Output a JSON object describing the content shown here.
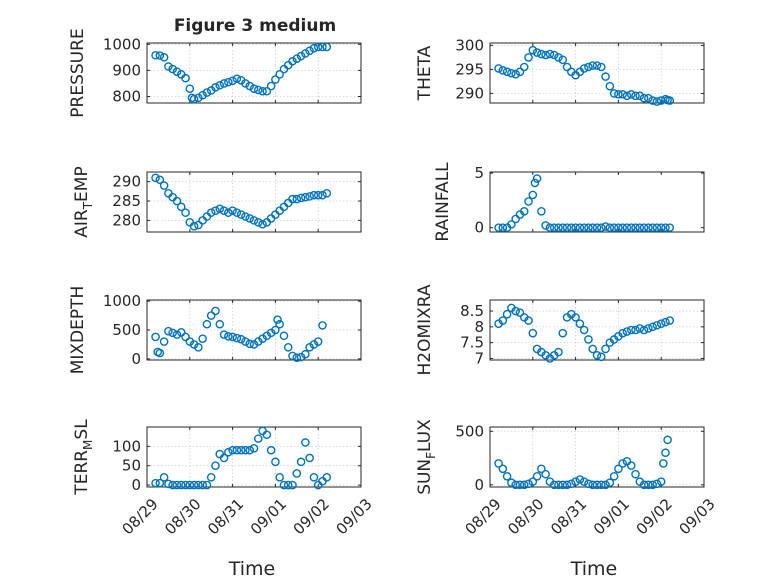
{
  "title": "Figure 3 medium",
  "xlabel": "Time",
  "x_ticks": [
    "08/29",
    "08/30",
    "08/31",
    "09/01",
    "09/02",
    "09/03"
  ],
  "marker_color": "#0072BD",
  "chart_data": [
    {
      "type": "scatter",
      "id": "pressure",
      "ylabel": "PRESSURE",
      "ylim": [
        775,
        1005
      ],
      "yticks": [
        800,
        900,
        1000
      ],
      "grid": true,
      "points": [
        [
          0.2,
          958
        ],
        [
          0.3,
          957
        ],
        [
          0.4,
          950
        ],
        [
          0.5,
          915
        ],
        [
          0.6,
          905
        ],
        [
          0.7,
          895
        ],
        [
          0.8,
          885
        ],
        [
          0.9,
          870
        ],
        [
          1.0,
          830
        ],
        [
          1.05,
          795
        ],
        [
          1.1,
          790
        ],
        [
          1.2,
          795
        ],
        [
          1.3,
          805
        ],
        [
          1.4,
          815
        ],
        [
          1.5,
          823
        ],
        [
          1.6,
          835
        ],
        [
          1.7,
          843
        ],
        [
          1.8,
          850
        ],
        [
          1.9,
          855
        ],
        [
          2.0,
          860
        ],
        [
          2.1,
          868
        ],
        [
          2.2,
          862
        ],
        [
          2.3,
          850
        ],
        [
          2.4,
          840
        ],
        [
          2.5,
          830
        ],
        [
          2.6,
          825
        ],
        [
          2.7,
          820
        ],
        [
          2.8,
          820
        ],
        [
          2.9,
          840
        ],
        [
          3.0,
          865
        ],
        [
          3.1,
          885
        ],
        [
          3.2,
          905
        ],
        [
          3.3,
          920
        ],
        [
          3.4,
          935
        ],
        [
          3.5,
          945
        ],
        [
          3.6,
          955
        ],
        [
          3.7,
          965
        ],
        [
          3.8,
          975
        ],
        [
          3.9,
          985
        ],
        [
          4.0,
          990
        ],
        [
          4.1,
          990
        ],
        [
          4.2,
          990
        ]
      ]
    },
    {
      "type": "scatter",
      "id": "theta",
      "ylabel": "THETA",
      "ylim": [
        288,
        300.5
      ],
      "yticks": [
        290,
        295,
        300
      ],
      "grid": true,
      "points": [
        [
          0.2,
          295.2
        ],
        [
          0.3,
          294.8
        ],
        [
          0.4,
          294.5
        ],
        [
          0.5,
          294.2
        ],
        [
          0.6,
          294.0
        ],
        [
          0.7,
          294.5
        ],
        [
          0.8,
          295.5
        ],
        [
          0.9,
          297.5
        ],
        [
          1.0,
          299.0
        ],
        [
          1.1,
          298.5
        ],
        [
          1.2,
          298.2
        ],
        [
          1.3,
          298.0
        ],
        [
          1.4,
          298.2
        ],
        [
          1.5,
          298.0
        ],
        [
          1.6,
          297.5
        ],
        [
          1.7,
          297.0
        ],
        [
          1.8,
          295.5
        ],
        [
          1.9,
          294.5
        ],
        [
          2.0,
          293.8
        ],
        [
          2.1,
          294.5
        ],
        [
          2.2,
          295.2
        ],
        [
          2.3,
          295.5
        ],
        [
          2.4,
          295.8
        ],
        [
          2.5,
          295.8
        ],
        [
          2.6,
          295.5
        ],
        [
          2.7,
          293.5
        ],
        [
          2.8,
          291.5
        ],
        [
          2.9,
          290.0
        ],
        [
          3.0,
          289.8
        ],
        [
          3.1,
          289.8
        ],
        [
          3.2,
          289.5
        ],
        [
          3.3,
          289.8
        ],
        [
          3.4,
          289.5
        ],
        [
          3.5,
          289.5
        ],
        [
          3.6,
          289.0
        ],
        [
          3.7,
          289.0
        ],
        [
          3.8,
          288.5
        ],
        [
          3.9,
          288.3
        ],
        [
          4.0,
          288.5
        ],
        [
          4.1,
          288.8
        ],
        [
          4.15,
          288.6
        ],
        [
          4.2,
          288.5
        ]
      ]
    },
    {
      "type": "scatter",
      "id": "air_temp",
      "ylabel": "AIR_TEMP",
      "ylabel_main": "AIR",
      "ylabel_sub": "T",
      "ylabel_rest": "EMP",
      "ylim": [
        277,
        292.5
      ],
      "yticks": [
        280,
        285,
        290
      ],
      "grid": true,
      "points": [
        [
          0.2,
          291
        ],
        [
          0.3,
          290.5
        ],
        [
          0.4,
          289
        ],
        [
          0.5,
          287
        ],
        [
          0.6,
          286
        ],
        [
          0.7,
          285
        ],
        [
          0.8,
          283.5
        ],
        [
          0.9,
          282
        ],
        [
          1.0,
          279.5
        ],
        [
          1.1,
          278.5
        ],
        [
          1.2,
          278.8
        ],
        [
          1.3,
          280
        ],
        [
          1.4,
          281
        ],
        [
          1.5,
          282
        ],
        [
          1.6,
          282.5
        ],
        [
          1.7,
          283
        ],
        [
          1.8,
          282.5
        ],
        [
          1.9,
          282
        ],
        [
          2.0,
          282.5
        ],
        [
          2.1,
          282
        ],
        [
          2.2,
          281.5
        ],
        [
          2.3,
          281
        ],
        [
          2.4,
          280.5
        ],
        [
          2.5,
          280
        ],
        [
          2.6,
          279.5
        ],
        [
          2.7,
          279
        ],
        [
          2.8,
          279.5
        ],
        [
          2.9,
          280.5
        ],
        [
          3.0,
          281.5
        ],
        [
          3.1,
          282.5
        ],
        [
          3.2,
          283.5
        ],
        [
          3.3,
          284.5
        ],
        [
          3.4,
          285.5
        ],
        [
          3.5,
          285.5
        ],
        [
          3.6,
          285.8
        ],
        [
          3.7,
          286
        ],
        [
          3.8,
          286.2
        ],
        [
          3.9,
          286.5
        ],
        [
          4.0,
          286.5
        ],
        [
          4.1,
          286.5
        ],
        [
          4.2,
          287
        ]
      ]
    },
    {
      "type": "scatter",
      "id": "rainfall",
      "ylabel": "RAINFALL",
      "ylim": [
        -0.4,
        5.1
      ],
      "yticks": [
        0,
        5
      ],
      "grid": false,
      "points": [
        [
          0.2,
          0
        ],
        [
          0.3,
          0
        ],
        [
          0.4,
          0
        ],
        [
          0.5,
          0.3
        ],
        [
          0.6,
          0.8
        ],
        [
          0.7,
          1.2
        ],
        [
          0.8,
          1.5
        ],
        [
          0.9,
          2.4
        ],
        [
          1.0,
          3.0
        ],
        [
          1.05,
          4.1
        ],
        [
          1.1,
          4.5
        ],
        [
          1.2,
          1.5
        ],
        [
          1.3,
          0.2
        ],
        [
          1.4,
          0
        ],
        [
          1.5,
          0
        ],
        [
          1.6,
          0
        ],
        [
          1.7,
          0
        ],
        [
          1.8,
          0
        ],
        [
          1.9,
          0
        ],
        [
          2.0,
          0
        ],
        [
          2.1,
          0
        ],
        [
          2.2,
          0
        ],
        [
          2.3,
          0
        ],
        [
          2.4,
          0
        ],
        [
          2.5,
          0
        ],
        [
          2.6,
          0
        ],
        [
          2.7,
          0.1
        ],
        [
          2.8,
          0
        ],
        [
          2.9,
          0
        ],
        [
          3.0,
          0
        ],
        [
          3.1,
          0
        ],
        [
          3.2,
          0
        ],
        [
          3.3,
          0
        ],
        [
          3.4,
          0
        ],
        [
          3.5,
          0
        ],
        [
          3.6,
          0
        ],
        [
          3.7,
          0
        ],
        [
          3.8,
          0
        ],
        [
          3.9,
          0
        ],
        [
          4.0,
          0
        ],
        [
          4.1,
          0
        ],
        [
          4.2,
          0
        ]
      ]
    },
    {
      "type": "scatter",
      "id": "mixdepth",
      "ylabel": "MIXDEPTH",
      "ylim": [
        -20,
        1020
      ],
      "yticks": [
        0,
        500,
        1000
      ],
      "grid": true,
      "points": [
        [
          0.2,
          380
        ],
        [
          0.25,
          120
        ],
        [
          0.3,
          100
        ],
        [
          0.4,
          300
        ],
        [
          0.5,
          480
        ],
        [
          0.6,
          450
        ],
        [
          0.7,
          420
        ],
        [
          0.8,
          460
        ],
        [
          0.9,
          380
        ],
        [
          1.0,
          300
        ],
        [
          1.1,
          250
        ],
        [
          1.2,
          200
        ],
        [
          1.3,
          350
        ],
        [
          1.4,
          600
        ],
        [
          1.5,
          750
        ],
        [
          1.6,
          830
        ],
        [
          1.7,
          600
        ],
        [
          1.8,
          420
        ],
        [
          1.9,
          390
        ],
        [
          2.0,
          380
        ],
        [
          2.1,
          360
        ],
        [
          2.2,
          340
        ],
        [
          2.3,
          300
        ],
        [
          2.4,
          260
        ],
        [
          2.5,
          250
        ],
        [
          2.6,
          300
        ],
        [
          2.7,
          350
        ],
        [
          2.8,
          400
        ],
        [
          2.9,
          450
        ],
        [
          3.0,
          500
        ],
        [
          3.05,
          680
        ],
        [
          3.1,
          600
        ],
        [
          3.2,
          400
        ],
        [
          3.3,
          200
        ],
        [
          3.4,
          50
        ],
        [
          3.5,
          20
        ],
        [
          3.6,
          30
        ],
        [
          3.7,
          80
        ],
        [
          3.8,
          200
        ],
        [
          3.9,
          250
        ],
        [
          4.0,
          300
        ],
        [
          4.1,
          580
        ]
      ]
    },
    {
      "type": "scatter",
      "id": "h2omixra",
      "ylabel": "H2OMIXRA",
      "ylim": [
        6.95,
        8.85
      ],
      "yticks": [
        7,
        7.5,
        8,
        8.5
      ],
      "grid": true,
      "points": [
        [
          0.2,
          8.1
        ],
        [
          0.3,
          8.2
        ],
        [
          0.4,
          8.4
        ],
        [
          0.5,
          8.6
        ],
        [
          0.6,
          8.5
        ],
        [
          0.7,
          8.45
        ],
        [
          0.8,
          8.3
        ],
        [
          0.9,
          8.2
        ],
        [
          1.0,
          7.8
        ],
        [
          1.1,
          7.3
        ],
        [
          1.2,
          7.2
        ],
        [
          1.3,
          7.1
        ],
        [
          1.4,
          7.0
        ],
        [
          1.5,
          7.1
        ],
        [
          1.6,
          7.2
        ],
        [
          1.7,
          7.8
        ],
        [
          1.8,
          8.3
        ],
        [
          1.9,
          8.4
        ],
        [
          2.0,
          8.3
        ],
        [
          2.1,
          8.1
        ],
        [
          2.2,
          7.9
        ],
        [
          2.3,
          7.6
        ],
        [
          2.4,
          7.3
        ],
        [
          2.5,
          7.1
        ],
        [
          2.6,
          7.05
        ],
        [
          2.7,
          7.3
        ],
        [
          2.8,
          7.5
        ],
        [
          2.9,
          7.6
        ],
        [
          3.0,
          7.7
        ],
        [
          3.1,
          7.8
        ],
        [
          3.2,
          7.85
        ],
        [
          3.3,
          7.9
        ],
        [
          3.4,
          7.9
        ],
        [
          3.5,
          7.95
        ],
        [
          3.6,
          7.9
        ],
        [
          3.7,
          7.95
        ],
        [
          3.8,
          8.0
        ],
        [
          3.9,
          8.05
        ],
        [
          4.0,
          8.1
        ],
        [
          4.1,
          8.15
        ],
        [
          4.2,
          8.2
        ]
      ]
    },
    {
      "type": "scatter",
      "id": "terr_msl",
      "ylabel": "TERR_MSL",
      "ylabel_main": "TERR",
      "ylabel_sub": "M",
      "ylabel_rest": "SL",
      "ylim": [
        -5,
        150
      ],
      "yticks": [
        0,
        50,
        100
      ],
      "grid": true,
      "points": [
        [
          0.2,
          5
        ],
        [
          0.3,
          5
        ],
        [
          0.4,
          20
        ],
        [
          0.5,
          3
        ],
        [
          0.6,
          0
        ],
        [
          0.7,
          0
        ],
        [
          0.8,
          0
        ],
        [
          0.9,
          0
        ],
        [
          1.0,
          0
        ],
        [
          1.1,
          0
        ],
        [
          1.2,
          0
        ],
        [
          1.3,
          0
        ],
        [
          1.4,
          0
        ],
        [
          1.5,
          20
        ],
        [
          1.6,
          50
        ],
        [
          1.7,
          80
        ],
        [
          1.8,
          70
        ],
        [
          1.9,
          85
        ],
        [
          2.0,
          90
        ],
        [
          2.1,
          90
        ],
        [
          2.2,
          90
        ],
        [
          2.3,
          90
        ],
        [
          2.4,
          90
        ],
        [
          2.5,
          95
        ],
        [
          2.6,
          120
        ],
        [
          2.7,
          140
        ],
        [
          2.8,
          130
        ],
        [
          2.9,
          90
        ],
        [
          3.0,
          60
        ],
        [
          3.1,
          20
        ],
        [
          3.2,
          0
        ],
        [
          3.3,
          0
        ],
        [
          3.4,
          0
        ],
        [
          3.5,
          30
        ],
        [
          3.6,
          60
        ],
        [
          3.7,
          110
        ],
        [
          3.8,
          70
        ],
        [
          3.9,
          20
        ],
        [
          4.0,
          0
        ],
        [
          4.1,
          10
        ],
        [
          4.2,
          20
        ]
      ]
    },
    {
      "type": "scatter",
      "id": "sun_flux",
      "ylabel": "SUN_FLUX",
      "ylabel_main": "SUN",
      "ylabel_sub": "F",
      "ylabel_rest": "LUX",
      "ylim": [
        -20,
        540
      ],
      "yticks": [
        0,
        500
      ],
      "grid": true,
      "points": [
        [
          0.2,
          200
        ],
        [
          0.3,
          150
        ],
        [
          0.4,
          80
        ],
        [
          0.5,
          20
        ],
        [
          0.6,
          0
        ],
        [
          0.7,
          0
        ],
        [
          0.8,
          0
        ],
        [
          0.9,
          10
        ],
        [
          1.0,
          30
        ],
        [
          1.1,
          80
        ],
        [
          1.2,
          150
        ],
        [
          1.3,
          100
        ],
        [
          1.4,
          30
        ],
        [
          1.5,
          0
        ],
        [
          1.6,
          0
        ],
        [
          1.7,
          0
        ],
        [
          1.8,
          0
        ],
        [
          1.9,
          10
        ],
        [
          2.0,
          30
        ],
        [
          2.1,
          50
        ],
        [
          2.2,
          30
        ],
        [
          2.3,
          10
        ],
        [
          2.4,
          0
        ],
        [
          2.5,
          0
        ],
        [
          2.6,
          0
        ],
        [
          2.7,
          0
        ],
        [
          2.8,
          20
        ],
        [
          2.9,
          80
        ],
        [
          3.0,
          150
        ],
        [
          3.1,
          200
        ],
        [
          3.2,
          220
        ],
        [
          3.3,
          180
        ],
        [
          3.4,
          100
        ],
        [
          3.5,
          30
        ],
        [
          3.6,
          0
        ],
        [
          3.7,
          0
        ],
        [
          3.8,
          0
        ],
        [
          3.9,
          10
        ],
        [
          4.0,
          30
        ],
        [
          4.05,
          200
        ],
        [
          4.1,
          300
        ],
        [
          4.15,
          420
        ]
      ]
    }
  ]
}
